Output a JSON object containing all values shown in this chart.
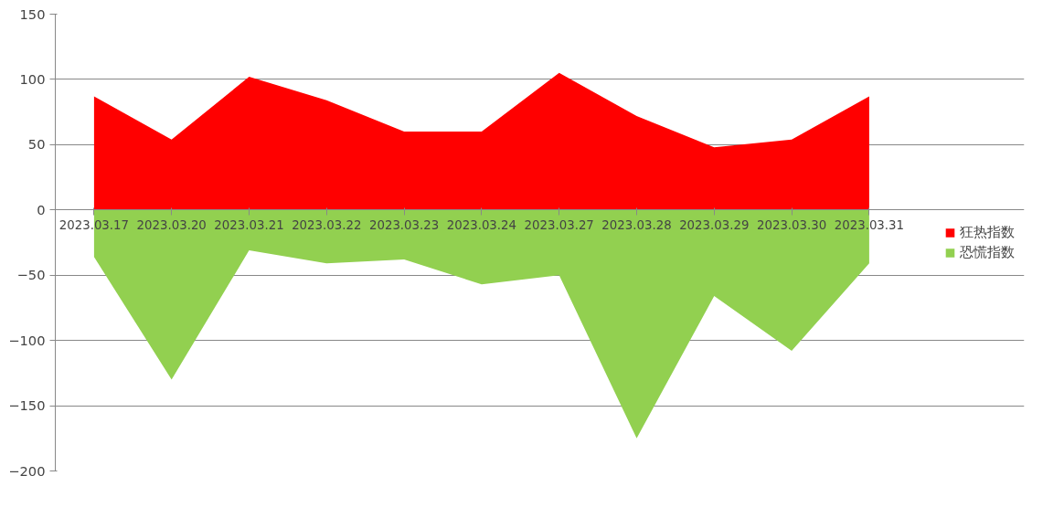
{
  "chart_data": {
    "type": "area",
    "categories": [
      "2023.03.17",
      "2023.03.20",
      "2023.03.21",
      "2023.03.22",
      "2023.03.23",
      "2023.03.24",
      "2023.03.27",
      "2023.03.28",
      "2023.03.29",
      "2023.03.30",
      "2023.03.31"
    ],
    "series": [
      {
        "name": "狂热指数",
        "color": "#ff0000",
        "values": [
          87,
          54,
          102,
          84,
          60,
          60,
          105,
          72,
          48,
          54,
          87
        ]
      },
      {
        "name": "恐慌指数",
        "color": "#92d050",
        "values": [
          -36,
          -130,
          -31,
          -41,
          -38,
          -57,
          -50,
          -175,
          -66,
          -108,
          -41
        ]
      }
    ],
    "ylim": [
      -200,
      150
    ],
    "yticks": [
      -200,
      -150,
      -100,
      -50,
      0,
      50,
      100,
      150
    ],
    "grid": "y",
    "legend": "right"
  }
}
